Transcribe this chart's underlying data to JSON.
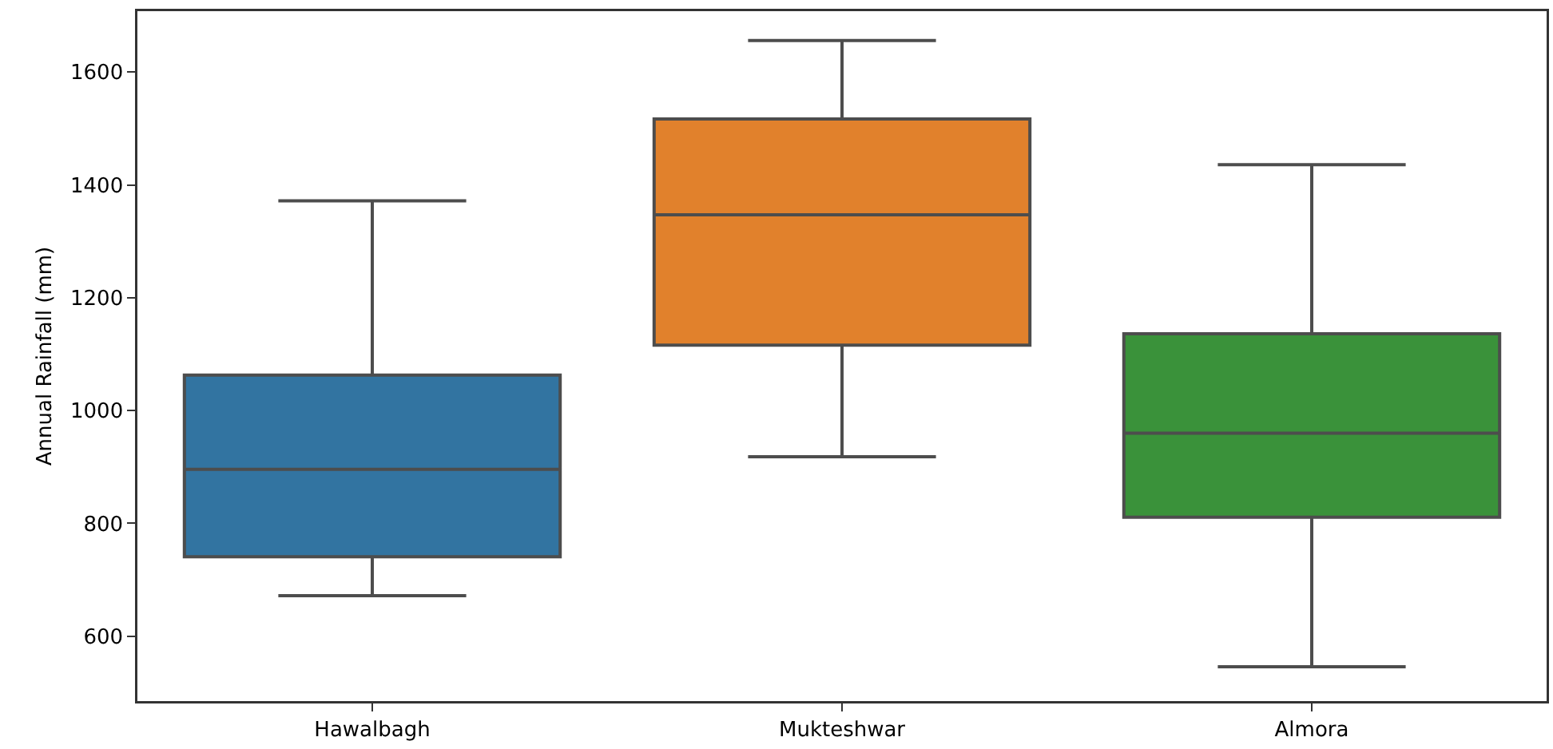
{
  "chart_data": {
    "type": "box",
    "ylabel": "Annual Rainfall (mm)",
    "categories": [
      "Hawalbagh",
      "Mukteshwar",
      "Almora"
    ],
    "colors": [
      "#3274a1",
      "#e1812c",
      "#3a923a"
    ],
    "boxes": [
      {
        "low": 672,
        "q1": 741,
        "median": 896,
        "q3": 1063,
        "high": 1372
      },
      {
        "low": 918,
        "q1": 1116,
        "median": 1347,
        "q3": 1517,
        "high": 1656
      },
      {
        "low": 546,
        "q1": 811,
        "median": 960,
        "q3": 1136,
        "high": 1436
      }
    ],
    "ylim": [
      485,
      1708
    ],
    "yticks": [
      600,
      800,
      1000,
      1200,
      1400,
      1600
    ],
    "grid": false
  }
}
